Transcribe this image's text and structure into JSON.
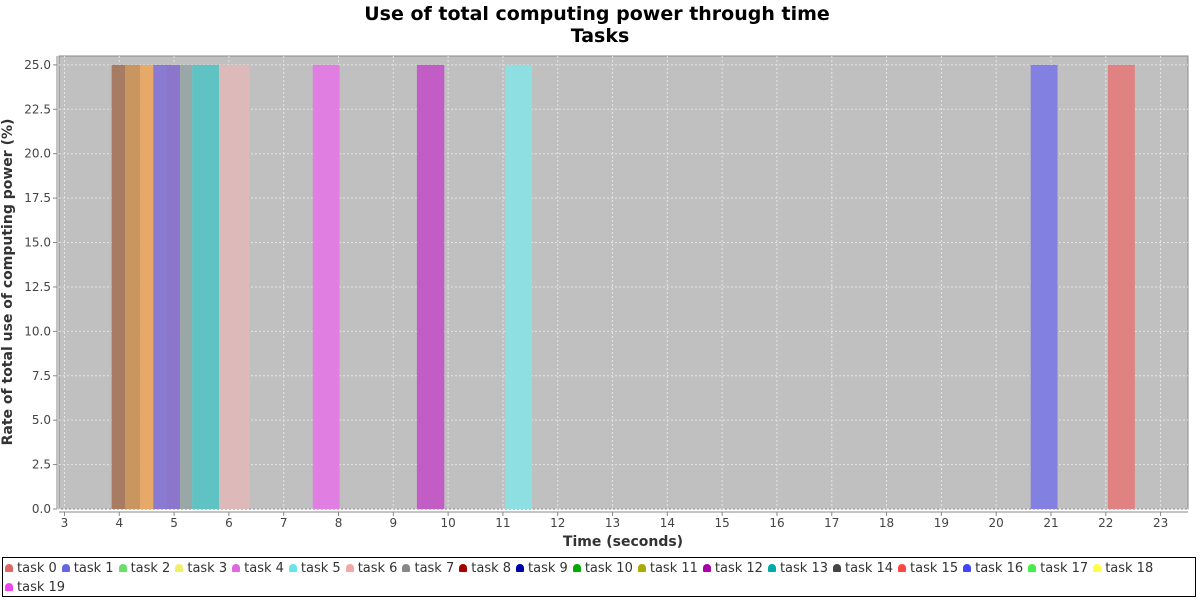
{
  "chart_data": {
    "type": "bar",
    "title": "Use of total computing power through time",
    "subtitle": "Tasks",
    "xlabel": "Time (seconds)",
    "ylabel": "Rate of total use of computing power (%)",
    "xlim": [
      2.9,
      23.5
    ],
    "ylim": [
      0,
      25.5
    ],
    "xticks": [
      3,
      4,
      5,
      6,
      7,
      8,
      9,
      10,
      11,
      12,
      13,
      14,
      15,
      16,
      17,
      18,
      19,
      20,
      21,
      22,
      23
    ],
    "yticks": [
      "0.0",
      "2.5",
      "5.0",
      "7.5",
      "10.0",
      "12.5",
      "15.0",
      "17.5",
      "20.0",
      "22.5",
      "25.0"
    ],
    "grid": true,
    "legend_position": "bottom",
    "bars": [
      {
        "start": 3.86,
        "end": 4.11,
        "value": 25,
        "color": "#a87c62"
      },
      {
        "start": 4.11,
        "end": 4.38,
        "value": 25,
        "color": "#c99660"
      },
      {
        "start": 4.38,
        "end": 4.62,
        "value": 25,
        "color": "#e6a968"
      },
      {
        "start": 4.62,
        "end": 4.87,
        "value": 25,
        "color": "#8a7ad2"
      },
      {
        "start": 4.87,
        "end": 5.11,
        "value": 25,
        "color": "#8c76cc"
      },
      {
        "start": 5.11,
        "end": 5.33,
        "value": 25,
        "color": "#9aa7a7"
      },
      {
        "start": 5.33,
        "end": 5.82,
        "value": 25,
        "color": "#5fc3c3"
      },
      {
        "start": 5.82,
        "end": 6.38,
        "value": 25,
        "color": "#deb9b9"
      },
      {
        "start": 7.53,
        "end": 8.02,
        "value": 25,
        "color": "#e07ee2"
      },
      {
        "start": 9.43,
        "end": 9.93,
        "value": 25,
        "color": "#c25dc5"
      },
      {
        "start": 11.04,
        "end": 11.53,
        "value": 25,
        "color": "#8edfe1"
      },
      {
        "start": 20.63,
        "end": 21.12,
        "value": 25,
        "color": "#8281e1"
      },
      {
        "start": 22.04,
        "end": 22.53,
        "value": 25,
        "color": "#e08282"
      }
    ]
  },
  "legend": {
    "items": [
      {
        "label": "task 0",
        "color": "#e06666"
      },
      {
        "label": "task 1",
        "color": "#6666e0"
      },
      {
        "label": "task 2",
        "color": "#66e066"
      },
      {
        "label": "task 3",
        "color": "#f0f066"
      },
      {
        "label": "task 4",
        "color": "#e066e0"
      },
      {
        "label": "task 5",
        "color": "#66e6e6"
      },
      {
        "label": "task 6",
        "color": "#f0a8a8"
      },
      {
        "label": "task 7",
        "color": "#888888"
      },
      {
        "label": "task 8",
        "color": "#aa0000"
      },
      {
        "label": "task 9",
        "color": "#0000aa"
      },
      {
        "label": "task 10",
        "color": "#00aa00"
      },
      {
        "label": "task 11",
        "color": "#aaaa00"
      },
      {
        "label": "task 12",
        "color": "#aa00aa"
      },
      {
        "label": "task 13",
        "color": "#00aaaa"
      },
      {
        "label": "task 14",
        "color": "#444444"
      },
      {
        "label": "task 15",
        "color": "#ff4444"
      },
      {
        "label": "task 16",
        "color": "#4444ff"
      },
      {
        "label": "task 17",
        "color": "#44ee44"
      },
      {
        "label": "task 18",
        "color": "#ffff44"
      },
      {
        "label": "task 19",
        "color": "#ee44ee"
      }
    ]
  }
}
